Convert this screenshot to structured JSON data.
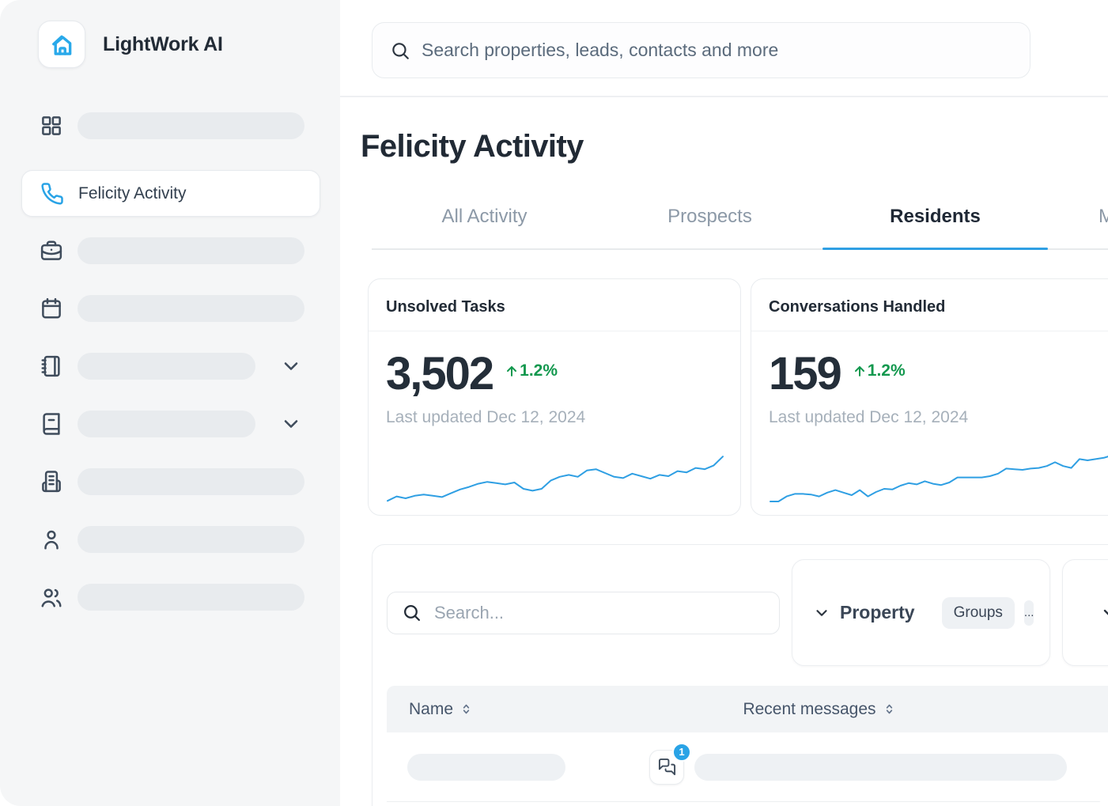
{
  "colors": {
    "accent_blue": "#2f9fe3",
    "positive_green": "#13984e",
    "sidebar_bg": "#f5f6f7",
    "text_dark": "#222b36",
    "text_muted": "#8c99a7"
  },
  "brand": {
    "name": "LightWork AI",
    "logo_icon": "house-icon"
  },
  "global_search": {
    "placeholder": "Search properties, leads, contacts and more",
    "icon": "search-icon"
  },
  "page": {
    "title": "Felicity Activity"
  },
  "sidebar": {
    "items": [
      {
        "icon": "grid-icon",
        "placeholder": true,
        "active": false
      },
      {
        "icon": "phone-icon",
        "label": "Felicity Activity",
        "active": true
      },
      {
        "icon": "briefcase-icon",
        "placeholder": true,
        "active": false
      },
      {
        "icon": "calendar-icon",
        "placeholder": true,
        "active": false
      },
      {
        "icon": "notebook-icon",
        "placeholder": true,
        "expandable": true,
        "active": false
      },
      {
        "icon": "book-icon",
        "placeholder": true,
        "expandable": true,
        "active": false
      },
      {
        "icon": "building-icon",
        "placeholder": true,
        "active": false
      },
      {
        "icon": "user-icon",
        "placeholder": true,
        "active": false
      },
      {
        "icon": "users-icon",
        "placeholder": true,
        "active": false
      }
    ]
  },
  "tabs": [
    {
      "label": "All Activity",
      "active": false
    },
    {
      "label": "Prospects",
      "active": false
    },
    {
      "label": "Residents",
      "active": true
    },
    {
      "label": "M",
      "active": false,
      "clipped": true
    }
  ],
  "stat_cards": [
    {
      "title": "Unsolved Tasks",
      "value": "3,502",
      "delta": "1.2%",
      "delta_direction": "up",
      "updated": "Last updated Dec 12, 2024"
    },
    {
      "title": "Conversations Handled",
      "value": "159",
      "delta": "1.2%",
      "delta_direction": "up",
      "updated": "Last updated Dec 12, 2024"
    }
  ],
  "panel": {
    "search": {
      "placeholder": "Search...",
      "icon": "search-icon"
    },
    "filters": {
      "property": {
        "label": "Property",
        "icon": "chevron-down-icon"
      },
      "groups_label": "Groups",
      "more_label": "...",
      "extra_filter_icon": "chevron-down-icon"
    },
    "table": {
      "columns": [
        {
          "label": "Name",
          "sortable": true
        },
        {
          "label": "Recent messages",
          "sortable": true
        }
      ],
      "rows": [
        {
          "name_placeholder": true,
          "message_placeholder": true,
          "unread_badge": "1",
          "icon": "chat-bubbles-icon"
        }
      ]
    }
  },
  "chart_data": [
    {
      "type": "line",
      "title": "Unsolved Tasks sparkline",
      "axes_shown": false,
      "grid": false,
      "ylim": [
        0,
        100
      ],
      "values": [
        6,
        13,
        10,
        14,
        16,
        14,
        12,
        18,
        24,
        28,
        33,
        36,
        34,
        32,
        35,
        25,
        22,
        25,
        38,
        44,
        47,
        44,
        54,
        56,
        50,
        44,
        42,
        49,
        45,
        41,
        47,
        45,
        53,
        51,
        58,
        56,
        62,
        76
      ]
    },
    {
      "type": "line",
      "title": "Conversations Handled sparkline",
      "axes_shown": false,
      "grid": false,
      "ylim": [
        0,
        100
      ],
      "values": [
        5,
        5,
        13,
        17,
        17,
        16,
        13,
        19,
        23,
        19,
        15,
        23,
        13,
        20,
        25,
        24,
        30,
        34,
        32,
        37,
        33,
        31,
        35,
        43,
        43,
        43,
        43,
        45,
        49,
        57,
        56,
        55,
        57,
        58,
        61,
        67,
        61,
        58,
        72,
        70,
        72,
        74,
        78
      ]
    }
  ]
}
